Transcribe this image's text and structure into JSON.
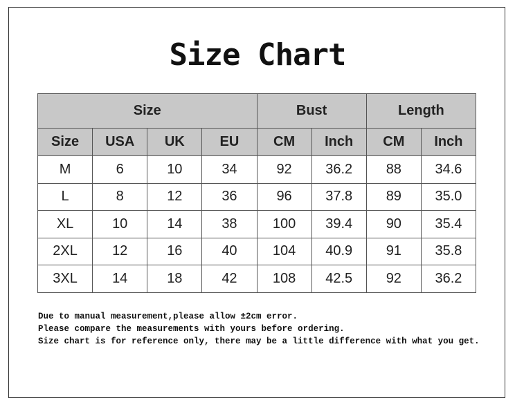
{
  "title": "Size Chart",
  "table": {
    "group_headers": [
      "Size",
      "Bust",
      "Length"
    ],
    "sub_headers": [
      "Size",
      "USA",
      "UK",
      "EU",
      "CM",
      "Inch",
      "CM",
      "Inch"
    ],
    "rows": [
      [
        "M",
        "6",
        "10",
        "34",
        "92",
        "36.2",
        "88",
        "34.6"
      ],
      [
        "L",
        "8",
        "12",
        "36",
        "96",
        "37.8",
        "89",
        "35.0"
      ],
      [
        "XL",
        "10",
        "14",
        "38",
        "100",
        "39.4",
        "90",
        "35.4"
      ],
      [
        "2XL",
        "12",
        "16",
        "40",
        "104",
        "40.9",
        "91",
        "35.8"
      ],
      [
        "3XL",
        "14",
        "18",
        "42",
        "108",
        "42.5",
        "92",
        "36.2"
      ]
    ]
  },
  "notes": [
    "Due to manual measurement,please allow ±2cm error.",
    "Please compare the measurements with yours before ordering.",
    "Size chart is for reference only, there may be a little difference with what you get."
  ],
  "colors": {
    "header_bg": "#c8c8c8",
    "border": "#555555"
  }
}
